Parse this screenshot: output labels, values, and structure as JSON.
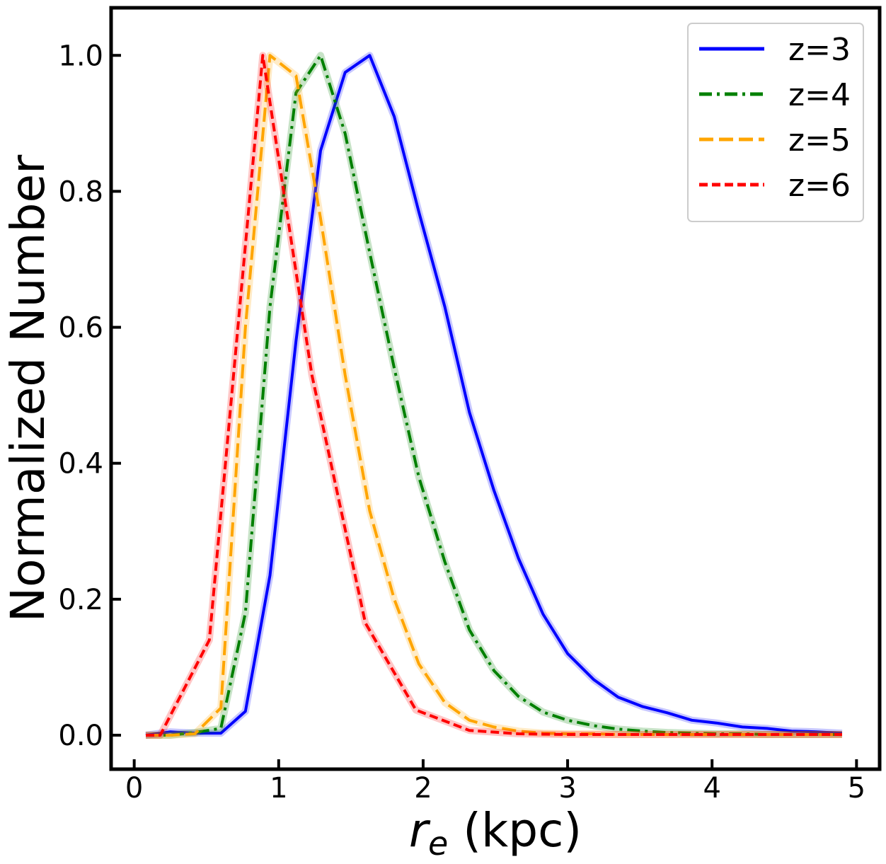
{
  "chart_data": {
    "type": "line",
    "title": "",
    "xlabel_var": "r",
    "xlabel_sub": "e",
    "xlabel_unit": " (kpc)",
    "ylabel": "Normalized Number",
    "xlim": [
      -0.16,
      5.16
    ],
    "ylim": [
      -0.05,
      1.07
    ],
    "xticks": [
      0,
      1,
      2,
      3,
      4,
      5
    ],
    "xtick_labels": [
      "0",
      "1",
      "2",
      "3",
      "4",
      "5"
    ],
    "yticks": [
      0.0,
      0.2,
      0.4,
      0.6,
      0.8,
      1.0
    ],
    "ytick_labels": [
      "0.0",
      "0.2",
      "0.4",
      "0.6",
      "0.8",
      "1.0"
    ],
    "legend_position": "top-right",
    "series": [
      {
        "name": "z=3",
        "color": "#0000ff",
        "dash": "solid",
        "x": [
          0.08,
          0.25,
          0.42,
          0.6,
          0.77,
          0.94,
          1.12,
          1.29,
          1.46,
          1.63,
          1.8,
          1.97,
          2.15,
          2.32,
          2.49,
          2.66,
          2.83,
          3.0,
          3.18,
          3.35,
          3.52,
          3.69,
          3.86,
          4.03,
          4.21,
          4.38,
          4.55,
          4.72,
          4.9
        ],
        "y": [
          0.0,
          0.005,
          0.003,
          0.003,
          0.035,
          0.235,
          0.58,
          0.86,
          0.975,
          1.0,
          0.91,
          0.77,
          0.63,
          0.475,
          0.36,
          0.26,
          0.178,
          0.12,
          0.082,
          0.056,
          0.042,
          0.033,
          0.022,
          0.018,
          0.012,
          0.01,
          0.006,
          0.005,
          0.003
        ]
      },
      {
        "name": "z=4",
        "color": "#008000",
        "dash": "dashdot",
        "x": [
          0.08,
          0.25,
          0.42,
          0.6,
          0.77,
          0.94,
          1.12,
          1.29,
          1.46,
          1.63,
          1.8,
          1.97,
          2.15,
          2.32,
          2.49,
          2.66,
          2.83,
          3.0,
          3.18,
          3.35,
          3.52,
          3.69,
          3.86,
          4.03,
          4.21,
          4.38,
          4.55,
          4.72,
          4.9
        ],
        "y": [
          0.0,
          0.0,
          0.004,
          0.01,
          0.18,
          0.63,
          0.945,
          1.0,
          0.885,
          0.71,
          0.54,
          0.38,
          0.255,
          0.155,
          0.095,
          0.057,
          0.034,
          0.022,
          0.014,
          0.009,
          0.006,
          0.004,
          0.003,
          0.002,
          0.002,
          0.001,
          0.001,
          0.001,
          0.001
        ]
      },
      {
        "name": "z=5",
        "color": "#ffa500",
        "dash": "dashed",
        "x": [
          0.08,
          0.25,
          0.42,
          0.6,
          0.77,
          0.94,
          1.12,
          1.29,
          1.46,
          1.63,
          1.8,
          1.97,
          2.15,
          2.32,
          2.49,
          2.66,
          2.83,
          3.0,
          3.18,
          3.35,
          3.52,
          3.69,
          3.86,
          4.03,
          4.21,
          4.38,
          4.55,
          4.72,
          4.9
        ],
        "y": [
          0.0,
          0.0,
          0.002,
          0.04,
          0.6,
          1.0,
          0.97,
          0.76,
          0.53,
          0.33,
          0.2,
          0.105,
          0.048,
          0.022,
          0.012,
          0.006,
          0.003,
          0.002,
          0.002,
          0.001,
          0.001,
          0.001,
          0.001,
          0.001,
          0.001,
          0.001,
          0.001,
          0.001,
          0.001
        ]
      },
      {
        "name": "z=6",
        "color": "#ff0000",
        "dash": "shortdash",
        "x": [
          0.08,
          0.18,
          0.52,
          0.89,
          1.23,
          1.6,
          1.95,
          2.32,
          2.66,
          3.0,
          3.35,
          3.69,
          4.03,
          4.38,
          4.72,
          4.9
        ],
        "y": [
          0.0,
          0.0,
          0.14,
          1.0,
          0.53,
          0.165,
          0.037,
          0.007,
          0.002,
          0.001,
          0.001,
          0.001,
          0.001,
          0.001,
          0.001,
          0.001
        ]
      }
    ]
  }
}
